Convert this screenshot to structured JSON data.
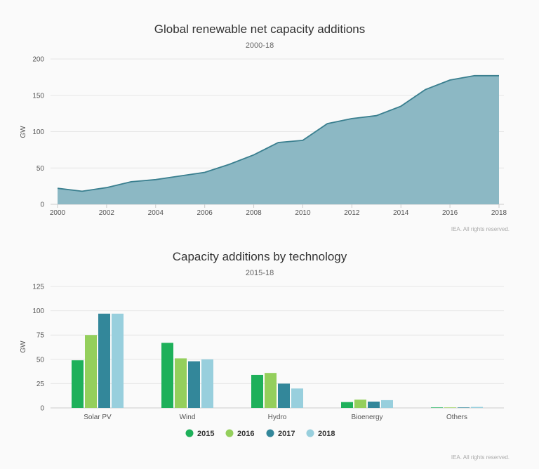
{
  "chart_data": [
    {
      "type": "area",
      "title": "Global renewable net capacity additions",
      "subtitle": "2000-18",
      "ylabel": "GW",
      "xlabel": "",
      "x": [
        2000,
        2001,
        2002,
        2003,
        2004,
        2005,
        2006,
        2007,
        2008,
        2009,
        2010,
        2011,
        2012,
        2013,
        2014,
        2015,
        2016,
        2017,
        2018
      ],
      "values": [
        22,
        18,
        23,
        31,
        34,
        39,
        44,
        55,
        68,
        85,
        88,
        111,
        118,
        122,
        135,
        158,
        171,
        177,
        177
      ],
      "xticks": [
        "2000",
        "2002",
        "2004",
        "2006",
        "2008",
        "2010",
        "2012",
        "2014",
        "2016",
        "2018"
      ],
      "yticks": [
        "0",
        "50",
        "100",
        "150",
        "200"
      ],
      "ylim": [
        0,
        200
      ],
      "xlim": [
        2000,
        2018
      ],
      "credit": "IEA. All rights reserved.",
      "colors": {
        "fill": "#8cb8c4",
        "line": "#3a7f8f"
      }
    },
    {
      "type": "bar",
      "title": "Capacity additions by technology",
      "subtitle": "2015-18",
      "ylabel": "GW",
      "categories": [
        "Solar PV",
        "Wind",
        "Hydro",
        "Bioenergy",
        "Others"
      ],
      "series": [
        {
          "name": "2015",
          "values": [
            49,
            67,
            34,
            6,
            0.5
          ],
          "color": "#1eb05a"
        },
        {
          "name": "2016",
          "values": [
            75,
            51,
            36,
            8.5,
            0.5
          ],
          "color": "#94cf5c"
        },
        {
          "name": "2017",
          "values": [
            97,
            48,
            25,
            6.5,
            0.5
          ],
          "color": "#33879a"
        },
        {
          "name": "2018",
          "values": [
            97,
            50,
            20,
            8,
            1
          ],
          "color": "#98cfdd"
        }
      ],
      "yticks": [
        "0",
        "25",
        "50",
        "75",
        "100",
        "125"
      ],
      "ylim": [
        0,
        125
      ],
      "credit": "IEA. All rights reserved."
    }
  ]
}
